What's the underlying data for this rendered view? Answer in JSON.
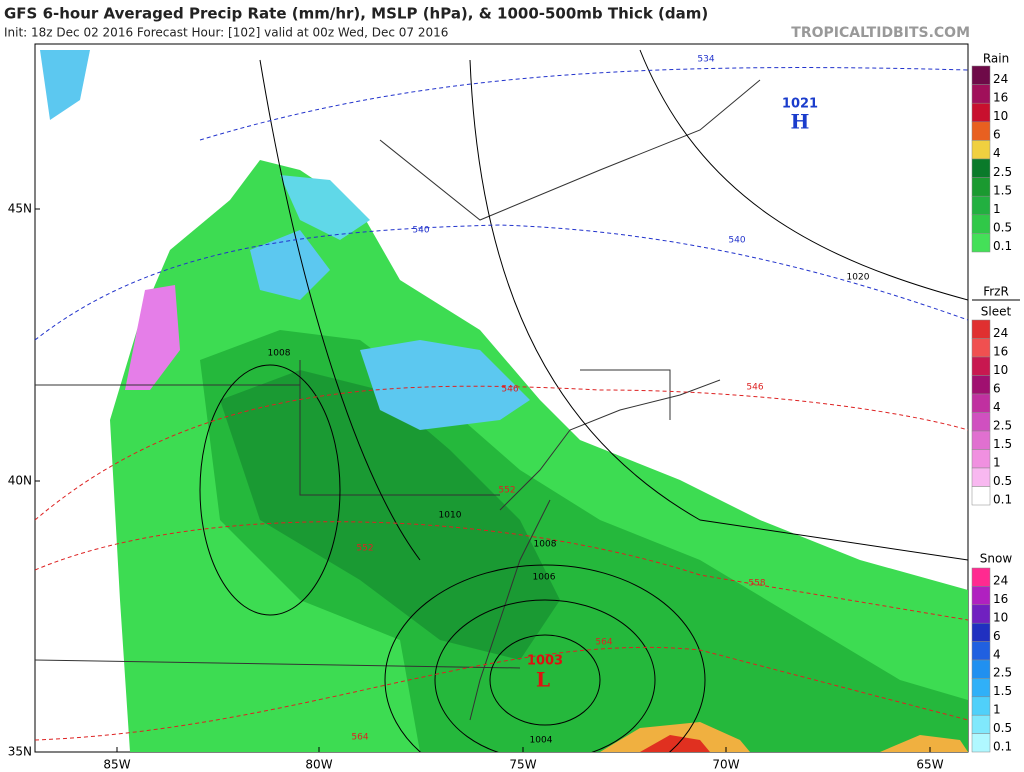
{
  "header": {
    "title": "GFS 6-hour Averaged Precip Rate (mm/hr), MSLP (hPa), & 1000-500mb Thick (dam)",
    "subtitle": "Init: 18z Dec 02 2016   Forecast Hour: [102]   valid at 00z Wed, Dec 07 2016",
    "site": "TROPICALTIDBITS.COM"
  },
  "map": {
    "lat_labels": [
      "45N",
      "40N",
      "35N"
    ],
    "lon_labels": [
      "85W",
      "80W",
      "75W",
      "70W",
      "65W"
    ],
    "highs": [
      {
        "pressure": "1021",
        "symbol": "H"
      }
    ],
    "lows": [
      {
        "pressure": "1003",
        "symbol": "L"
      }
    ],
    "contour_labels": [
      "534",
      "540",
      "540",
      "1020",
      "1008",
      "546",
      "546",
      "1010",
      "552",
      "1008",
      "1006",
      "558",
      "564",
      "564",
      "1004",
      "552"
    ]
  },
  "legends": [
    {
      "title": [
        "Rain"
      ],
      "labels": [
        "24",
        "16",
        "10",
        "6",
        "4",
        "2.5",
        "1.5",
        "1",
        "0.5",
        "0.1"
      ]
    },
    {
      "title": [
        "FrzR",
        "Sleet"
      ],
      "labels": [
        "24",
        "16",
        "10",
        "6",
        "4",
        "2.5",
        "1.5",
        "1",
        "0.5",
        "0.1"
      ]
    },
    {
      "title": [
        "Snow"
      ],
      "labels": [
        "24",
        "16",
        "10",
        "6",
        "4",
        "2.5",
        "1.5",
        "1",
        "0.5",
        "0.1"
      ]
    }
  ]
}
